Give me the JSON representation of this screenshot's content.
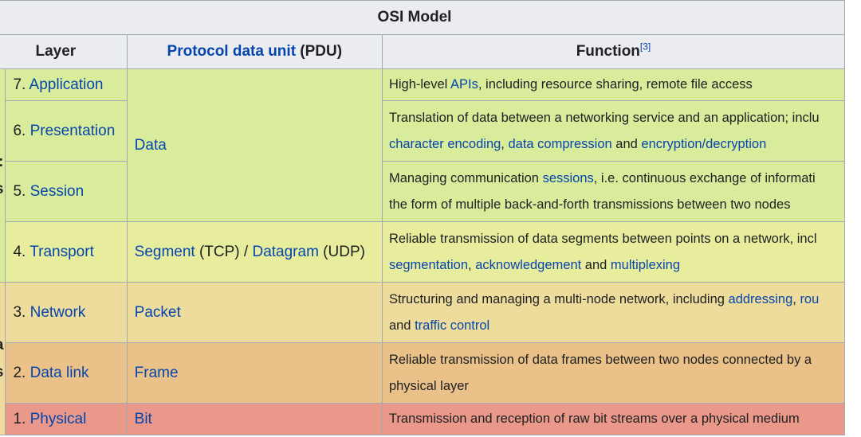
{
  "table": {
    "caption": "OSI Model",
    "headers": {
      "layer": "Layer",
      "pdu_link": "Protocol data unit",
      "pdu_abbr": " (PDU)",
      "function": "Function",
      "function_ref": "[3]"
    },
    "groups": {
      "host": {
        "line1": ":",
        "line2": "s",
        "color": "#d8ec9c"
      },
      "media": {
        "line1": "a",
        "line2": "s",
        "color": "#eddc9c"
      }
    },
    "pdus": {
      "data": "Data",
      "segment": "Segment",
      "tcp": " (TCP) / ",
      "datagram": "Datagram",
      "udp": " (UDP)",
      "packet": "Packet",
      "frame": "Frame",
      "bit": "Bit"
    },
    "rows": [
      {
        "num": "7. ",
        "name": "Application",
        "color": "#d8ec9c",
        "f1a": "High-level ",
        "f1b": "APIs",
        "f1c": ", including resource sharing, remote file access"
      },
      {
        "num": "6. ",
        "name": "Presentation",
        "color": "#d8ec9c",
        "f1": "Translation of data between a networking service and an application; inclu",
        "f2a": "character encoding",
        "f2b": ", ",
        "f2c": "data compression",
        "f2d": " and ",
        "f2e": "encryption/decryption"
      },
      {
        "num": "5. ",
        "name": "Session",
        "color": "#d8ec9c",
        "f1a": "Managing communication ",
        "f1b": "sessions",
        "f1c": ", i.e. continuous exchange of informati",
        "f2": "the form of multiple back-and-forth transmissions between two nodes"
      },
      {
        "num": "4. ",
        "name": "Transport",
        "color": "#e7ed9c",
        "f1": "Reliable transmission of data segments between points on a network, incl",
        "f2a": "segmentation",
        "f2b": ", ",
        "f2c": "acknowledgement",
        "f2d": " and ",
        "f2e": "multiplexing"
      },
      {
        "num": "3. ",
        "name": "Network",
        "color": "#eddc9c",
        "f1a": "Structuring and managing a multi-node network, including ",
        "f1b": "addressing",
        "f1c": ", ",
        "f1d": "rou",
        "f2a": "and ",
        "f2b": "traffic control"
      },
      {
        "num": "2. ",
        "name": "Data link",
        "color": "#e9c189",
        "f1": "Reliable transmission of data frames between two nodes connected by a",
        "f2": "physical layer"
      },
      {
        "num": "1. ",
        "name": "Physical",
        "color": "#e9988a",
        "f1": "Transmission and reception of raw bit streams over a physical medium"
      }
    ]
  }
}
